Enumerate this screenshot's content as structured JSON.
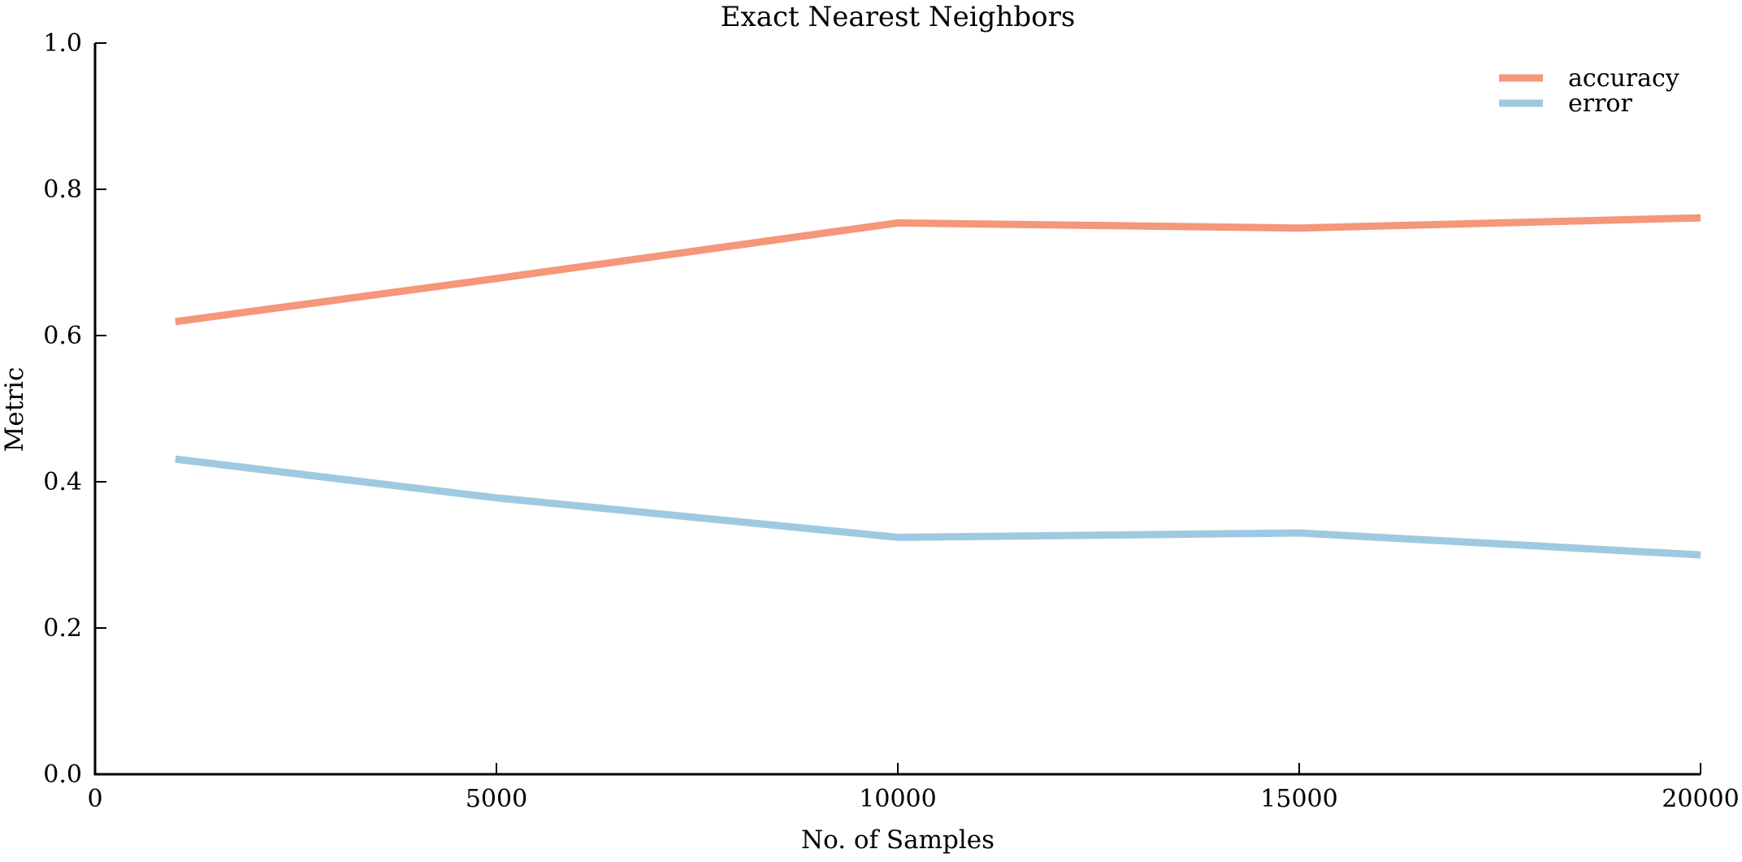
{
  "chart_data": {
    "type": "line",
    "title": "Exact Nearest Neighbors",
    "xlabel": "No. of Samples",
    "ylabel": "Metric",
    "xlim": [
      0,
      20000
    ],
    "ylim": [
      0.0,
      1.0
    ],
    "xticks": [
      0,
      5000,
      10000,
      15000,
      20000
    ],
    "xtick_labels": [
      "0",
      "5000",
      "10000",
      "15000",
      "20000"
    ],
    "yticks": [
      0.0,
      0.2,
      0.4,
      0.6,
      0.8,
      1.0
    ],
    "ytick_labels": [
      "0.0",
      "0.2",
      "0.4",
      "0.6",
      "0.8",
      "1.0"
    ],
    "grid": false,
    "legend_position": "top-right",
    "x": [
      1000,
      5000,
      10000,
      15000,
      20000
    ],
    "series": [
      {
        "name": "accuracy",
        "color": "#f4977a",
        "values": [
          0.619,
          0.678,
          0.754,
          0.747,
          0.761
        ]
      },
      {
        "name": "error",
        "color": "#9ecae1",
        "values": [
          0.431,
          0.378,
          0.324,
          0.33,
          0.3
        ]
      }
    ]
  }
}
